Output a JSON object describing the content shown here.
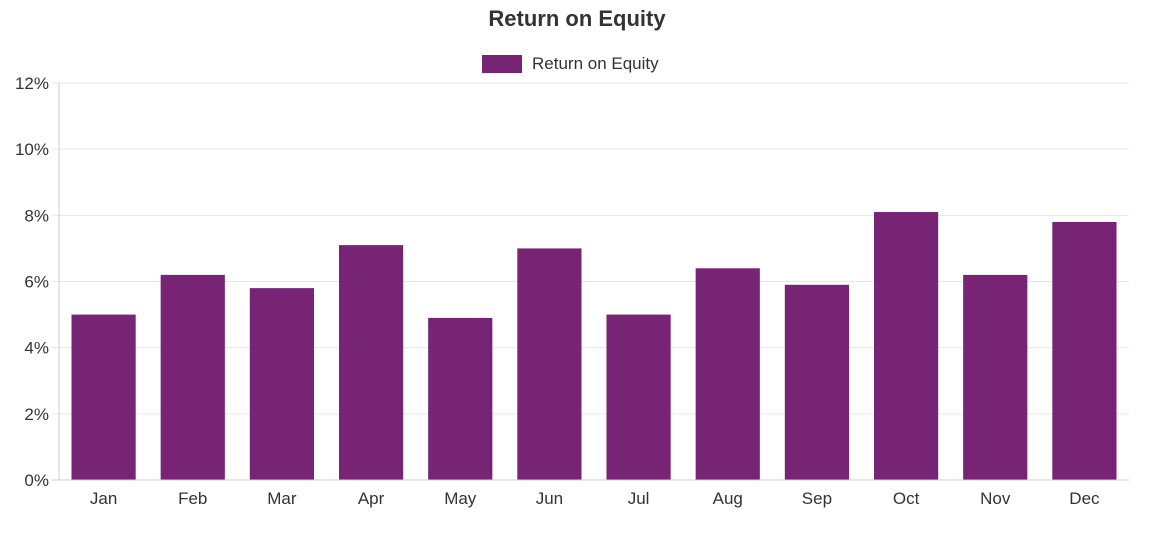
{
  "chart_data": {
    "type": "bar",
    "title": "Return on Equity",
    "categories": [
      "Jan",
      "Feb",
      "Mar",
      "Apr",
      "May",
      "Jun",
      "Jul",
      "Aug",
      "Sep",
      "Oct",
      "Nov",
      "Dec"
    ],
    "series": [
      {
        "name": "Return on Equity",
        "color": "#782474",
        "values": [
          5.0,
          6.2,
          5.8,
          7.1,
          4.9,
          7.0,
          5.0,
          6.4,
          5.9,
          8.1,
          6.2,
          7.8
        ]
      }
    ],
    "ylim": [
      0,
      12
    ],
    "yticks": [
      0,
      2,
      4,
      6,
      8,
      10,
      12
    ],
    "ytick_labels": [
      "0%",
      "2%",
      "4%",
      "6%",
      "8%",
      "10%",
      "12%"
    ],
    "grid": true,
    "legend_position": "top"
  }
}
